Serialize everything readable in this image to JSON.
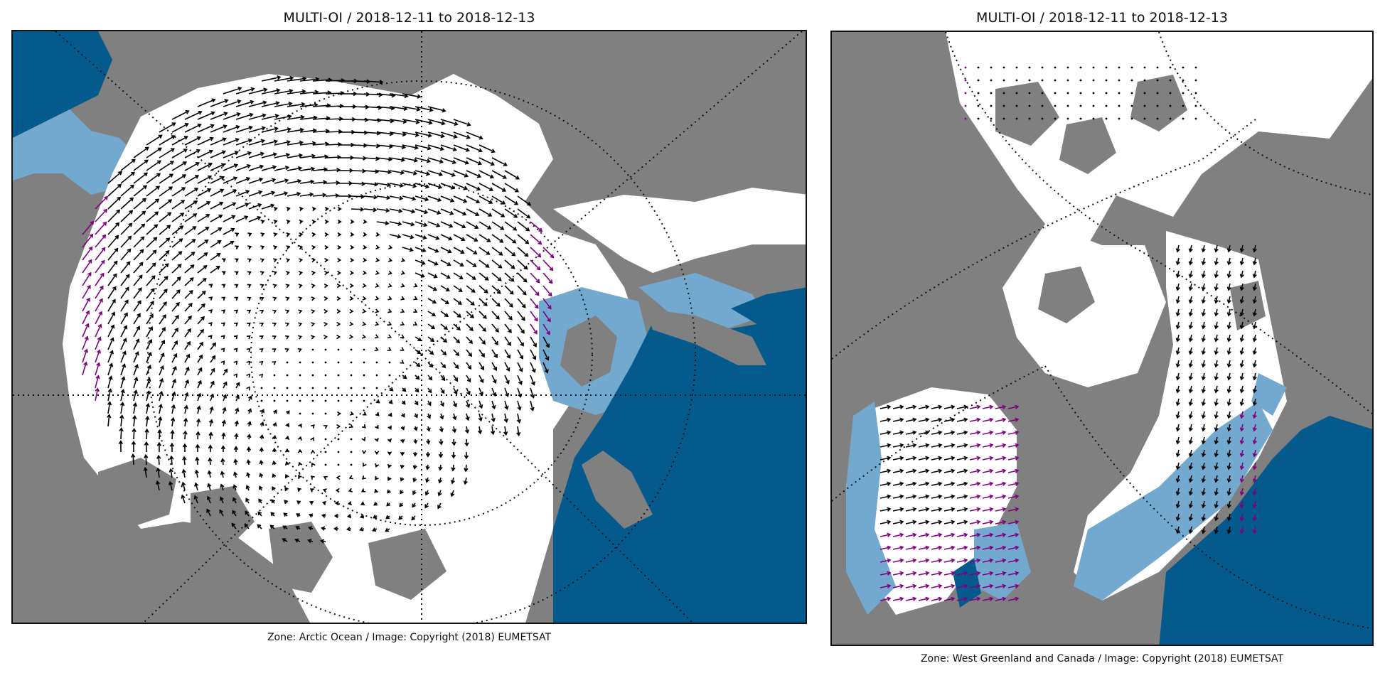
{
  "colors": {
    "land": "#808080",
    "sea_ice": "#ffffff",
    "marginal_ice": "#74a9cf",
    "open_water": "#045a8d",
    "graticule": "#111111",
    "drift_vector": "#000000",
    "flagged_vector": "#800080"
  },
  "panels": [
    {
      "title": "MULTI-OI / 2018-12-11 to 2018-12-13",
      "caption": "Zone: Arctic Ocean / Image: Copyright (2018) EUMETSAT"
    },
    {
      "title": "MULTI-OI / 2018-12-11 to 2018-12-13",
      "caption": "Zone: West Greenland and Canada / Image: Copyright (2018) EUMETSAT"
    }
  ]
}
